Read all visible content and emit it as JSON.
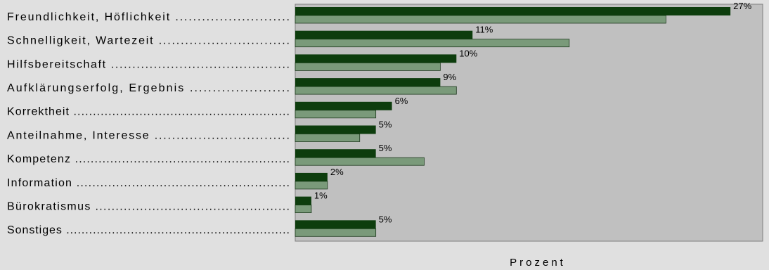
{
  "chart_data": {
    "type": "bar",
    "orientation": "horizontal",
    "categories": [
      "Freundlichkeit, Höflichkeit ..........................",
      "Schnelligkeit, Wartezeit ..............................",
      "Hilfsbereitschaft ..........................................",
      "Aufklärungserfolg, Ergebnis ......................",
      "Korrektheit ........................................................",
      "Anteilnahme, Interesse ...............................",
      "Kompetenz .......................................................",
      "Information ......................................................",
      "Bürokratismus ................................................",
      "Sonstiges ..........................................................."
    ],
    "series": [
      {
        "values": [
          27,
          11,
          10,
          9,
          6,
          5,
          5,
          2,
          1,
          5
        ],
        "color": "#0d3d0d",
        "value_labels": [
          "27%",
          "11%",
          "10%",
          "9%",
          "6%",
          "5%",
          "5%",
          "2%",
          "1%",
          "5%"
        ]
      },
      {
        "values": [
          23,
          17,
          9,
          10,
          5,
          4,
          8,
          2,
          1,
          5
        ],
        "color": "#7a9a7a"
      }
    ],
    "xlabel": "Prozent",
    "xlim": [
      0,
      29
    ],
    "plot_background": "#c0c0c0",
    "grid": false,
    "legend": "none"
  }
}
